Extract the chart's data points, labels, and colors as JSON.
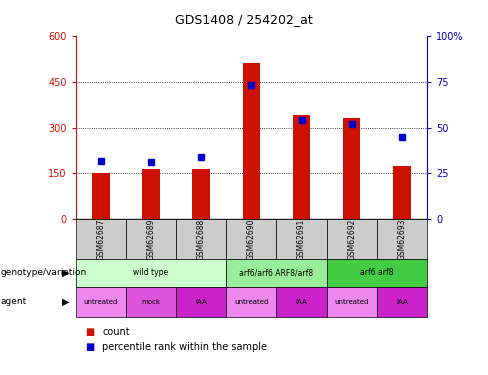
{
  "title": "GDS1408 / 254202_at",
  "samples": [
    "GSM62687",
    "GSM62689",
    "GSM62688",
    "GSM62690",
    "GSM62691",
    "GSM62692",
    "GSM62693"
  ],
  "bar_values": [
    152,
    165,
    163,
    510,
    340,
    330,
    175
  ],
  "percentile_values": [
    32,
    31,
    34,
    73,
    54,
    52,
    45
  ],
  "bar_color": "#cc1100",
  "percentile_color": "#0000cc",
  "ylim_left": [
    0,
    600
  ],
  "ylim_right": [
    0,
    100
  ],
  "yticks_left": [
    0,
    150,
    300,
    450,
    600
  ],
  "yticks_right": [
    0,
    25,
    50,
    75,
    100
  ],
  "ytick_labels_right": [
    "0",
    "25",
    "50",
    "75",
    "100%"
  ],
  "grid_values": [
    150,
    300,
    450
  ],
  "genotype_groups": [
    {
      "label": "wild type",
      "start": 0,
      "end": 3,
      "color": "#ccffcc"
    },
    {
      "label": "arf6/arf6 ARF8/arf8",
      "start": 3,
      "end": 5,
      "color": "#99ee99"
    },
    {
      "label": "arf6 arf8",
      "start": 5,
      "end": 7,
      "color": "#44cc44"
    }
  ],
  "agent_labels": [
    "untreated",
    "mock",
    "IAA",
    "untreated",
    "IAA",
    "untreated",
    "IAA"
  ],
  "agent_colors": [
    "#ee88ee",
    "#dd55dd",
    "#cc22cc",
    "#ee88ee",
    "#cc22cc",
    "#ee88ee",
    "#cc22cc"
  ],
  "row_label_genotype": "genotype/variation",
  "row_label_agent": "agent",
  "legend_bar": "count",
  "legend_percentile": "percentile rank within the sample",
  "background_color": "#ffffff"
}
